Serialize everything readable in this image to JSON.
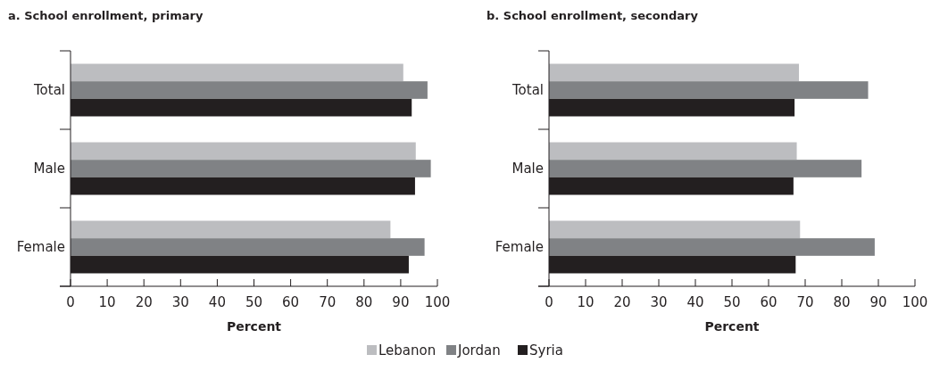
{
  "chart_data": [
    {
      "type": "bar",
      "orientation": "horizontal",
      "title": "a. School enrollment, primary",
      "xlabel": "Percent",
      "categories": [
        "Total",
        "Male",
        "Female"
      ],
      "xlim": [
        0,
        100
      ],
      "xticks": [
        0,
        10,
        20,
        30,
        40,
        50,
        60,
        70,
        80,
        90,
        100
      ],
      "grid": false,
      "legend": "bottom",
      "series": [
        {
          "name": "Lebanon",
          "color": "#bcbdc0",
          "values": [
            90.7,
            94.1,
            87.2
          ]
        },
        {
          "name": "Jordan",
          "color": "#808285",
          "values": [
            97.3,
            98.2,
            96.5
          ]
        },
        {
          "name": "Syria",
          "color": "#231f20",
          "values": [
            93.0,
            93.9,
            92.2
          ]
        }
      ]
    },
    {
      "type": "bar",
      "orientation": "horizontal",
      "title": "b. School enrollment, secondary",
      "xlabel": "Percent",
      "categories": [
        "Total",
        "Male",
        "Female"
      ],
      "xlim": [
        0,
        100
      ],
      "xticks": [
        0,
        10,
        20,
        30,
        40,
        50,
        60,
        70,
        80,
        90,
        100
      ],
      "grid": false,
      "series": [
        {
          "color": "#bcbdc0",
          "values": [
            68.3,
            67.7,
            68.6
          ]
        },
        {
          "color": "#808285",
          "values": [
            87.2,
            85.4,
            89.0
          ]
        },
        {
          "color": "#231f20",
          "values": [
            67.1,
            66.8,
            67.4
          ]
        }
      ]
    }
  ]
}
